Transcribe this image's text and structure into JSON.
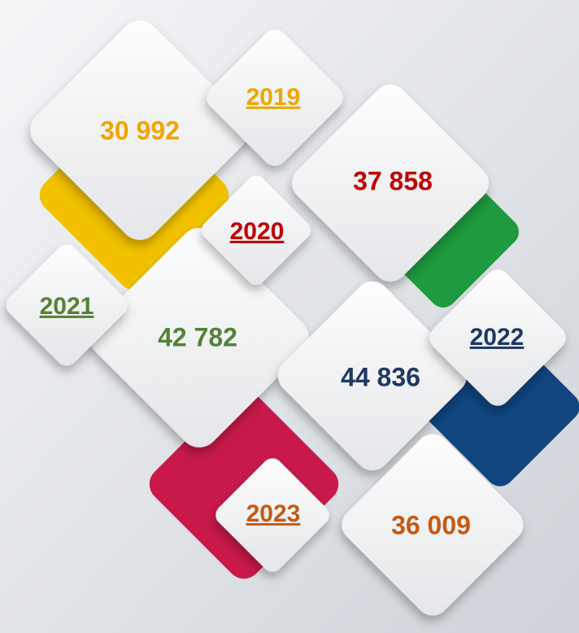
{
  "items": [
    {
      "year": "2019",
      "value": "30 992"
    },
    {
      "year": "2020",
      "value": "37 858"
    },
    {
      "year": "2021",
      "value": "42 782"
    },
    {
      "year": "2022",
      "value": "44 836"
    },
    {
      "year": "2023",
      "value": "36 009"
    }
  ]
}
